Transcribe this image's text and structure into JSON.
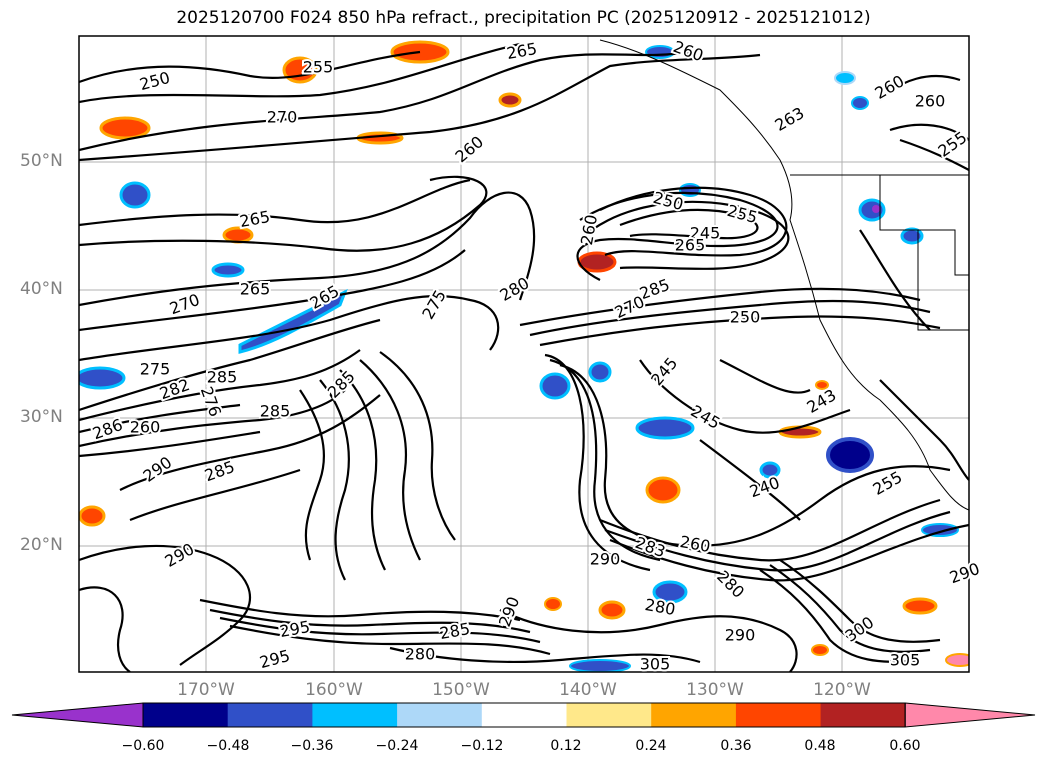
{
  "title": "2025120700 F024 850 hPa refract., precipitation PC (2025120912 - 2025121012)",
  "lat_labels": [
    "50°N",
    "40°N",
    "30°N",
    "20°N"
  ],
  "lon_labels": [
    "170°W",
    "160°W",
    "150°W",
    "140°W",
    "130°W",
    "120°W"
  ],
  "colorbar": {
    "ticks": [
      "−0.60",
      "−0.48",
      "−0.36",
      "−0.24",
      "−0.12",
      "0.12",
      "0.24",
      "0.36",
      "0.48",
      "0.60"
    ],
    "colors": [
      "#9932cc",
      "#00008b",
      "#3050c8",
      "#00bfff",
      "#add8f8",
      "#ffffff",
      "#ffe88a",
      "#ffa500",
      "#ff4500",
      "#b22222",
      "#ff88aa"
    ]
  },
  "contour_labels": [
    "250",
    "255",
    "265",
    "270",
    "260",
    "260",
    "265",
    "263",
    "260",
    "255",
    "260",
    "265",
    "250",
    "255",
    "245",
    "265",
    "260",
    "270",
    "265",
    "275",
    "280",
    "285",
    "270",
    "250",
    "275",
    "282",
    "285",
    "285",
    "245",
    "245",
    "243",
    "285",
    "276",
    "286",
    "260",
    "290",
    "285",
    "240",
    "255",
    "290",
    "283",
    "260",
    "280",
    "290",
    "280",
    "290",
    "285",
    "290",
    "295",
    "295",
    "280",
    "305",
    "300",
    "305",
    "290"
  ]
}
